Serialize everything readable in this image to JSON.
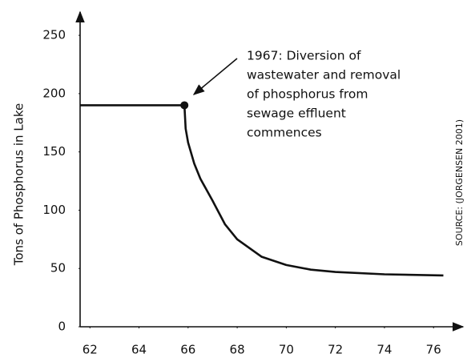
{
  "chart_data": {
    "type": "line",
    "ylabel": "Tons of Phosphorus in Lake",
    "annotation": [
      "1967: Diversion of",
      "wastewater and removal",
      "of phosphorus from",
      "sewage effluent",
      "commences"
    ],
    "source": "SOURCE: (JORGENSEN 2001)",
    "x": [
      61.6,
      65.85,
      65.9,
      66,
      66.25,
      66.5,
      67,
      67.5,
      68,
      69,
      70,
      71,
      72,
      74,
      76.4
    ],
    "series": [
      {
        "color": "#111111",
        "values": [
          190,
          190,
          170,
          158,
          140,
          127,
          108,
          88,
          75,
          60,
          53,
          49,
          47,
          45,
          44
        ]
      }
    ],
    "xlim": [
      61.6,
      77.2
    ],
    "ylim": [
      0,
      270
    ],
    "xticks": [
      62,
      64,
      66,
      68,
      70,
      72,
      74,
      76
    ],
    "yticks": [
      0,
      50,
      100,
      150,
      200,
      250
    ]
  }
}
